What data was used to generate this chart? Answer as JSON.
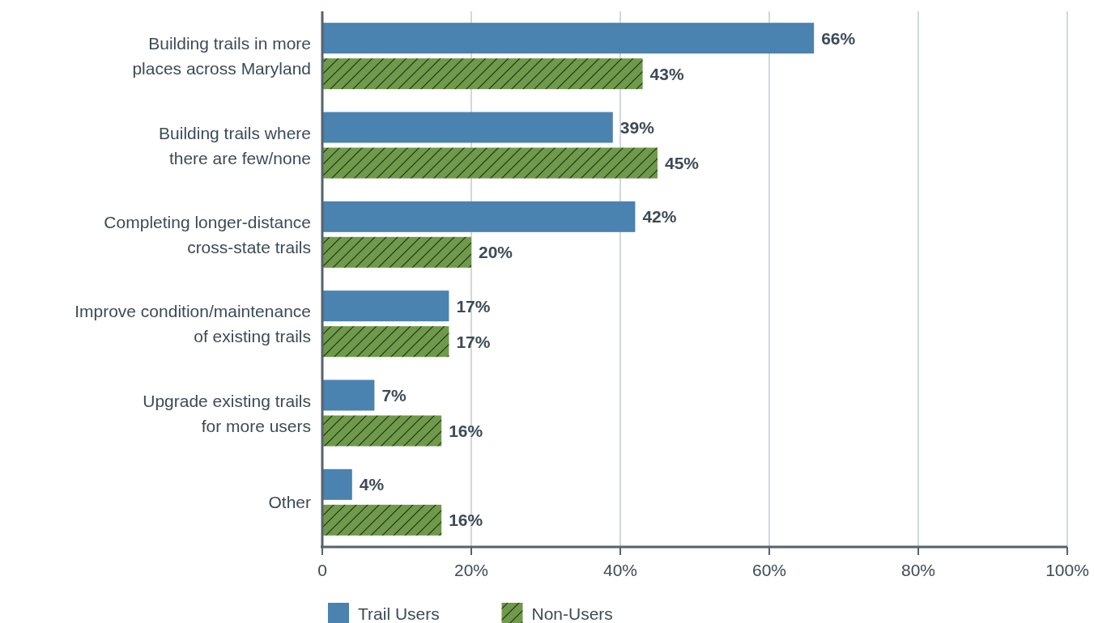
{
  "chart_data": {
    "type": "bar",
    "orientation": "horizontal",
    "categories": [
      "Building trails in more\nplaces across Maryland",
      "Building trails where\nthere are few/none",
      "Completing longer-distance\ncross-state trails",
      "Improve condition/maintenance\nof existing trails",
      "Upgrade existing trails\nfor more users",
      "Other"
    ],
    "series": [
      {
        "name": "Trail Users",
        "color": "#4a82b0",
        "values": [
          66,
          39,
          42,
          17,
          7,
          4
        ],
        "value_labels": [
          "66%",
          "39%",
          "42%",
          "17%",
          "7%",
          "4%"
        ]
      },
      {
        "name": "Non-Users",
        "color": "#6e9a4a",
        "values": [
          43,
          45,
          20,
          17,
          16,
          16
        ],
        "value_labels": [
          "43%",
          "45%",
          "20%",
          "17%",
          "16%",
          "16%"
        ]
      }
    ],
    "xlim": [
      0,
      100
    ],
    "xticks": [
      0,
      {
        "value": 20,
        "label": "20%"
      },
      {
        "value": 40,
        "label": "40%"
      },
      {
        "value": 60,
        "label": "60%"
      },
      {
        "value": 80,
        "label": "80%"
      },
      {
        "value": 100,
        "label": "100%"
      }
    ],
    "grid": "x",
    "legend": "bottom"
  }
}
